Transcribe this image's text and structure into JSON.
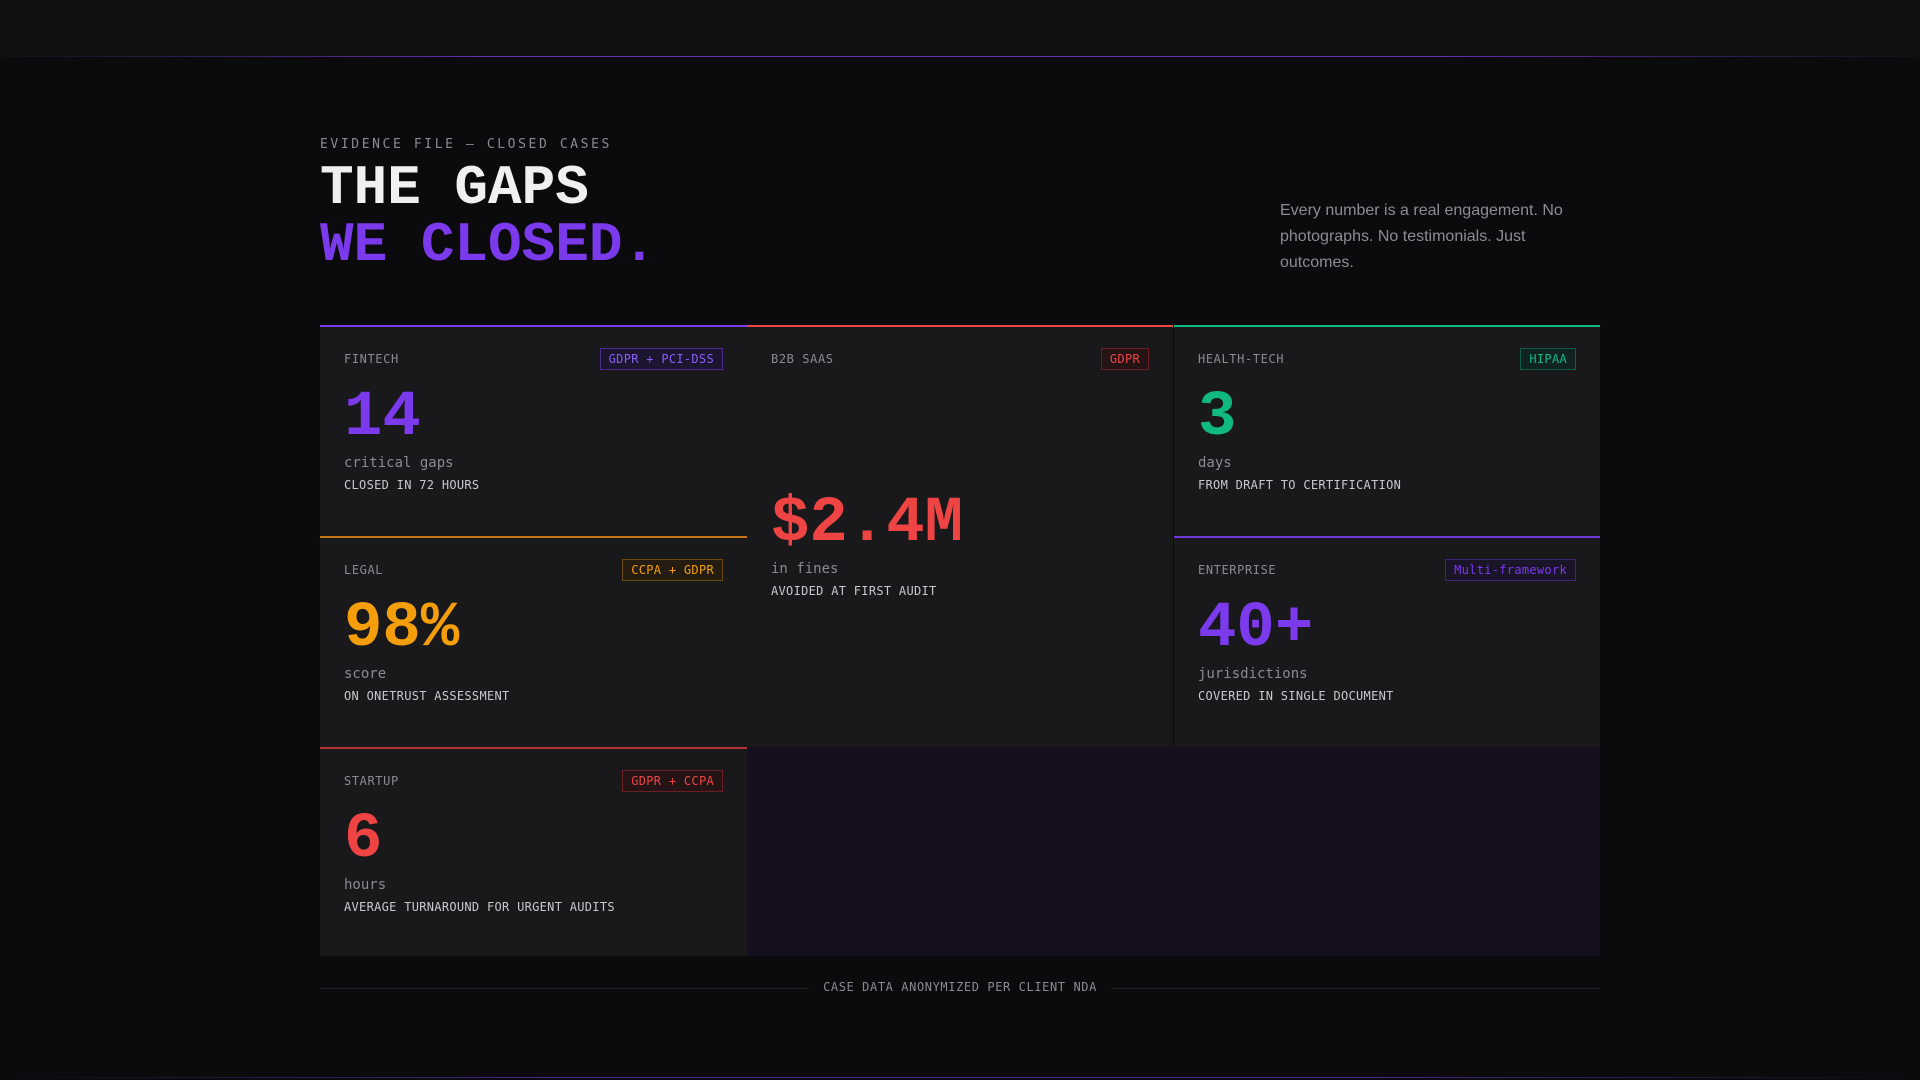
{
  "header": {
    "eyebrow": "EVIDENCE FILE — CLOSED CASES",
    "title_line1": "THE GAPS",
    "title_line2": "WE CLOSED.",
    "lede": "Every number is a real engagement. No photographs. No testimonials. Just outcomes."
  },
  "colors": {
    "purple": "#7c3aed",
    "red": "#ef4444",
    "green": "#10b981",
    "amber": "#f59e0b"
  },
  "cases": [
    {
      "sector": "FINTECH",
      "tag": "GDPR + PCI-DSS",
      "value": "14",
      "unit": "critical gaps",
      "caption": "CLOSED IN 72 HOURS",
      "accent": "purple"
    },
    {
      "sector": "B2B SAAS",
      "tag": "GDPR",
      "value": "$2.4M",
      "unit": "in fines",
      "caption": "AVOIDED AT FIRST AUDIT",
      "accent": "red"
    },
    {
      "sector": "HEALTH-TECH",
      "tag": "HIPAA",
      "value": "3",
      "unit": "days",
      "caption": "FROM DRAFT TO CERTIFICATION",
      "accent": "green"
    },
    {
      "sector": "LEGAL",
      "tag": "CCPA + GDPR",
      "value": "98%",
      "unit": "score",
      "caption": "ON ONETRUST ASSESSMENT",
      "accent": "amber"
    },
    {
      "sector": "ENTERPRISE",
      "tag": "Multi-framework",
      "value": "40+",
      "unit": "jurisdictions",
      "caption": "COVERED IN SINGLE DOCUMENT",
      "accent": "purple"
    },
    {
      "sector": "STARTUP",
      "tag": "GDPR + CCPA",
      "value": "6",
      "unit": "hours",
      "caption": "AVERAGE TURNAROUND FOR URGENT AUDITS",
      "accent": "red"
    }
  ],
  "footer": {
    "note": "CASE DATA ANONYMIZED PER CLIENT NDA"
  }
}
